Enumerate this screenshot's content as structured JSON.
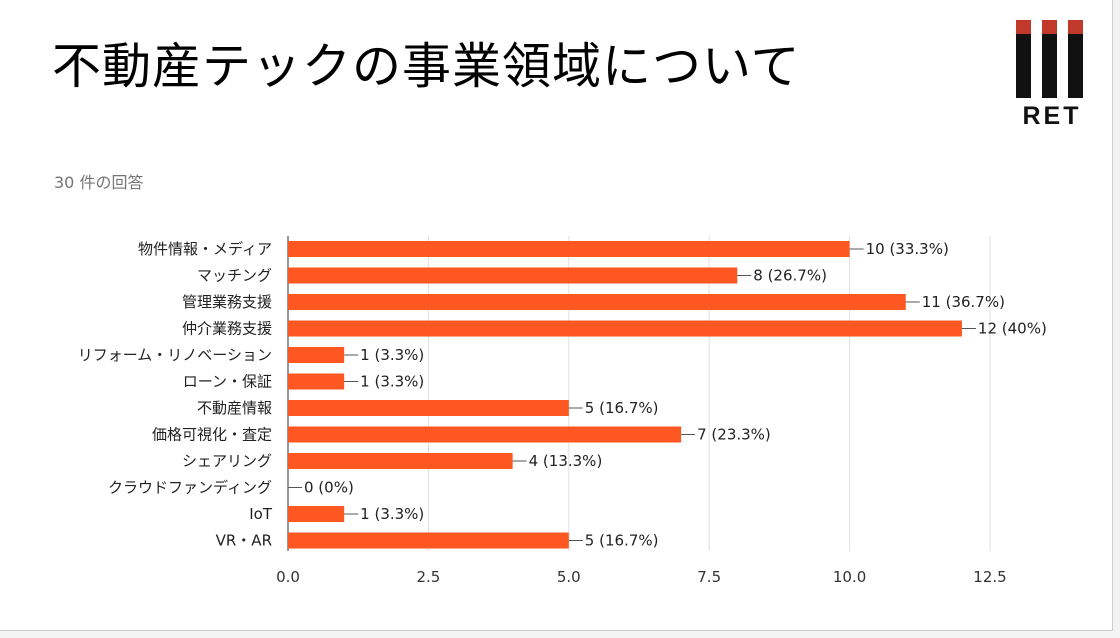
{
  "slide": {
    "title": "不動産テックの事業領域について",
    "response_count": "30 件の回答"
  },
  "logo": {
    "text": "RET",
    "accent_color": "#c0392b"
  },
  "chart_data": {
    "type": "bar",
    "orientation": "horizontal",
    "title": "",
    "xlabel": "",
    "ylabel": "",
    "bar_color": "#ff5722",
    "grid": true,
    "xlim": [
      0,
      12.5
    ],
    "x_ticks": [
      0,
      2.5,
      5,
      7.5,
      10,
      12.5
    ],
    "x_tick_labels": [
      "0.0",
      "2.5",
      "5.0",
      "7.5",
      "10.0",
      "12.5"
    ],
    "categories": [
      "物件情報・メディア",
      "マッチング",
      "管理業務支援",
      "仲介業務支援",
      "リフォーム・リノベーション",
      "ローン・保証",
      "不動産情報",
      "価格可視化・査定",
      "シェアリング",
      "クラウドファンディング",
      "IoT",
      "VR・AR"
    ],
    "values": [
      10,
      8,
      11,
      12,
      1,
      1,
      5,
      7,
      4,
      0,
      1,
      5
    ],
    "data_labels": [
      "10 (33.3%)",
      "8 (26.7%)",
      "11 (36.7%)",
      "12 (40%)",
      "1 (3.3%)",
      "1 (3.3%)",
      "5 (16.7%)",
      "7 (23.3%)",
      "4 (13.3%)",
      "0 (0%)",
      "1 (3.3%)",
      "5 (16.7%)"
    ]
  }
}
